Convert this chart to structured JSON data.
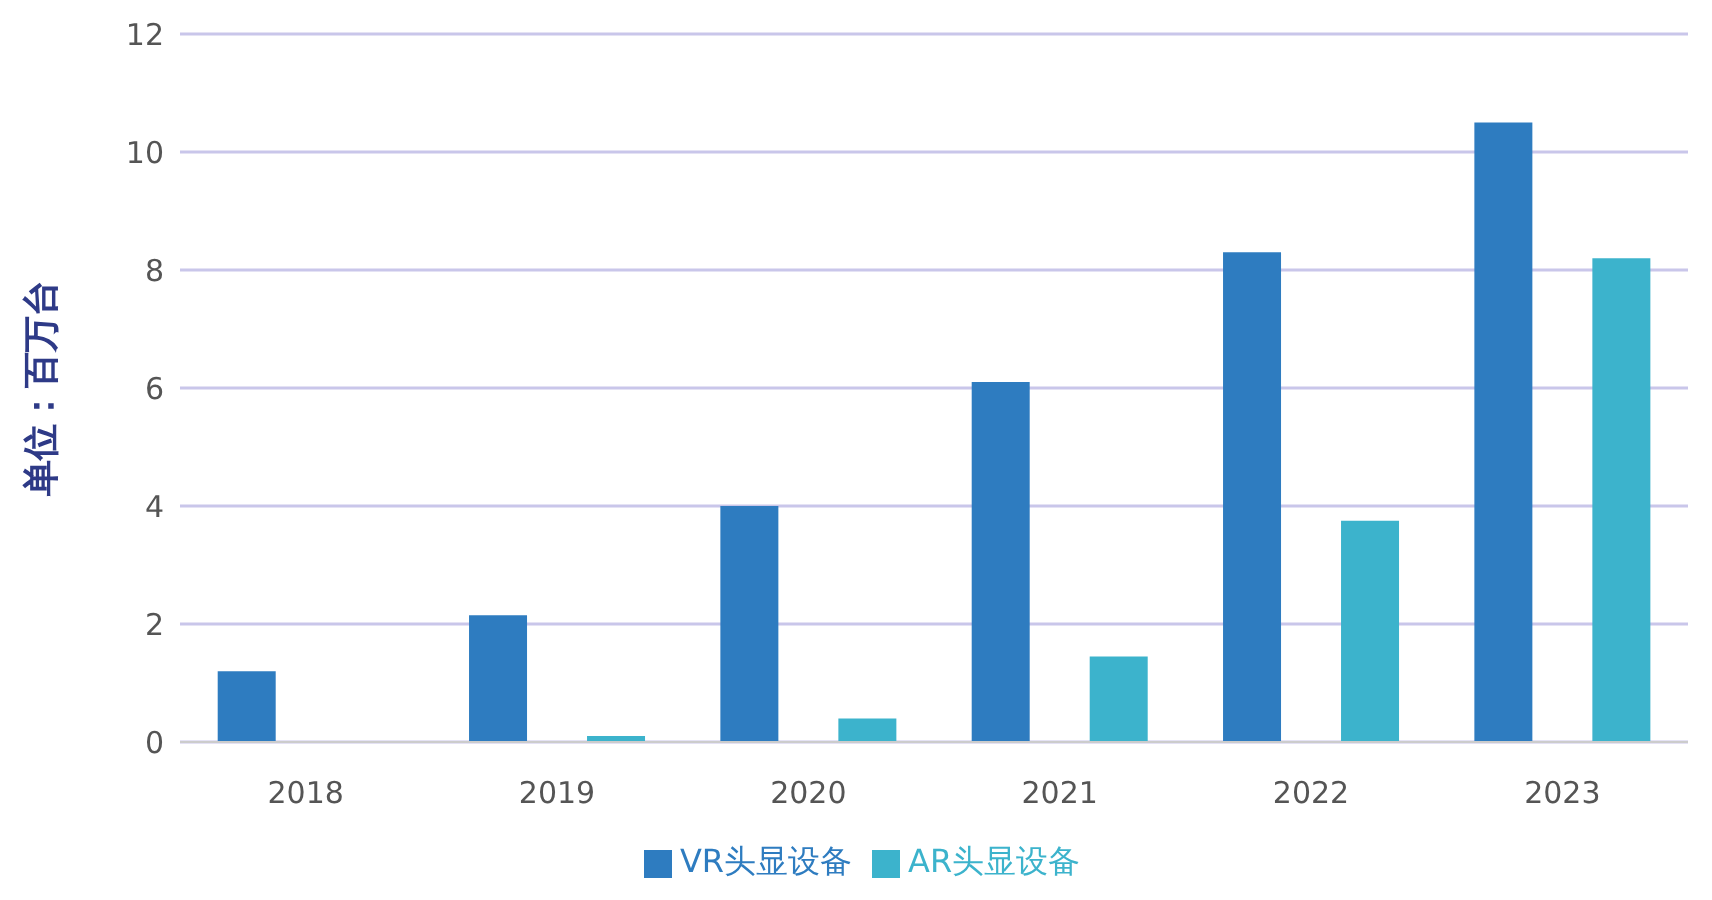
{
  "chart_data": {
    "type": "bar",
    "ylabel": "单位：百万台",
    "categories": [
      "2018",
      "2019",
      "2020",
      "2021",
      "2022",
      "2023"
    ],
    "series": [
      {
        "name": "VR头显设备",
        "color": "#2e7cc0",
        "values": [
          1.2,
          2.15,
          4.0,
          6.1,
          8.3,
          10.5
        ]
      },
      {
        "name": "AR头显设备",
        "color": "#3cb3cc",
        "values": [
          null,
          0.1,
          0.4,
          1.45,
          3.75,
          8.2
        ]
      }
    ],
    "ylim": [
      0,
      12
    ],
    "yticks": [
      0,
      2,
      4,
      6,
      8,
      10,
      12
    ],
    "grid": "y",
    "legend": "bottom"
  }
}
